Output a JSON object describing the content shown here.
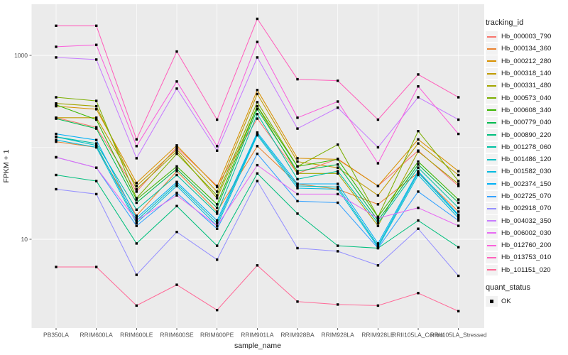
{
  "figure": {
    "panel_bg": "#EBEBEB",
    "grid_color": "#FFFFFF",
    "point_color": "#000000",
    "tick_color": "#333333",
    "tick_label_color": "#4D4D4D",
    "axis_title_color": "#1A1A1A",
    "legend_key_bg": "#F2F2F2"
  },
  "axes": {
    "x_title": "sample_name",
    "y_title": "FPKM + 1",
    "y_ticks": [
      {
        "label": "1000",
        "value": 1000
      },
      {
        "label": "10",
        "value": 10
      }
    ],
    "y_minor_ticks": [
      100
    ]
  },
  "legend": {
    "tracking_title": "tracking_id",
    "quant_title": "quant_status",
    "quant_ok_label": "OK"
  },
  "chart_data": {
    "type": "line",
    "title": "",
    "xlabel": "sample_name",
    "ylabel": "FPKM + 1",
    "y_scale": "log10",
    "ylim": [
      1.1,
      3600
    ],
    "grid": true,
    "legend_position": "right",
    "marker": "black-square",
    "categories": [
      "PB350LA",
      "RRIM600LA",
      "RRIM600LE",
      "RRIM600SE",
      "RRIM600PE",
      "RRIM901LA",
      "RRIM928BA",
      "RRIM928LA",
      "RRIM928LE",
      "RRII105LA_Control",
      "RRII105LA_Stressed"
    ],
    "series": [
      {
        "name": "Hb_000003_790",
        "color": "#F8766D",
        "values": [
          210,
          165,
          33,
          100,
          38,
          205,
          52,
          75,
          38,
          92,
          38
        ]
      },
      {
        "name": "Hb_000134_360",
        "color": "#EA8331",
        "values": [
          115,
          100,
          18,
          55,
          20,
          103,
          40,
          35,
          24,
          53,
          20
        ]
      },
      {
        "name": "Hb_000212_280",
        "color": "#D89000",
        "values": [
          280,
          260,
          41,
          105,
          37,
          420,
          76,
          74,
          38,
          122,
          55
        ]
      },
      {
        "name": "Hb_000318_140",
        "color": "#C09B00",
        "values": [
          210,
          210,
          38,
          95,
          33,
          380,
          70,
          60,
          30,
          110,
          50
        ]
      },
      {
        "name": "Hb_000331_480",
        "color": "#A3A500",
        "values": [
          300,
          280,
          35,
          90,
          28,
          280,
          52,
          52,
          14,
          90,
          40
        ]
      },
      {
        "name": "Hb_000573_040",
        "color": "#7CAE00",
        "values": [
          350,
          320,
          28,
          85,
          30,
          310,
          62,
          107,
          17.5,
          150,
          43
        ]
      },
      {
        "name": "Hb_000608_340",
        "color": "#39B600",
        "values": [
          290,
          200,
          27,
          62,
          24,
          280,
          62,
          74,
          17.5,
          70,
          27
        ]
      },
      {
        "name": "Hb_000779_040",
        "color": "#00BB4E",
        "values": [
          205,
          160,
          25,
          58,
          22,
          260,
          55,
          65,
          16,
          65,
          25
        ]
      },
      {
        "name": "Hb_000890_220",
        "color": "#00BF7D",
        "values": [
          50,
          43,
          9,
          23,
          8.5,
          52,
          19,
          8.5,
          8,
          16,
          8.2
        ]
      },
      {
        "name": "Hb_001278_060",
        "color": "#00C1A3",
        "values": [
          130,
          110,
          21,
          50,
          19,
          230,
          45,
          55,
          15,
          60,
          22
        ]
      },
      {
        "name": "Hb_001486_120",
        "color": "#00BFC4",
        "values": [
          130,
          105,
          16,
          40,
          15,
          140,
          38,
          37,
          8.5,
          53,
          18
        ]
      },
      {
        "name": "Hb_001582_030",
        "color": "#00BAE0",
        "values": [
          120,
          100,
          15,
          38,
          14,
          135,
          36,
          35,
          8.2,
          50,
          17
        ]
      },
      {
        "name": "Hb_002374_150",
        "color": "#00B0F6",
        "values": [
          140,
          120,
          17,
          42,
          16,
          145,
          40,
          40,
          9,
          55,
          18.5
        ]
      },
      {
        "name": "Hb_002725_070",
        "color": "#35A2FF",
        "values": [
          78,
          60,
          14,
          32,
          13,
          85,
          26,
          25,
          8,
          33,
          16
        ]
      },
      {
        "name": "Hb_002918_070",
        "color": "#9590FF",
        "values": [
          35,
          31,
          4.1,
          12,
          6,
          43,
          8,
          7.4,
          5.2,
          13,
          4
        ]
      },
      {
        "name": "Hb_004032_350",
        "color": "#C77CFF",
        "values": [
          950,
          900,
          76,
          435,
          92,
          950,
          160,
          270,
          100,
          350,
          200
        ]
      },
      {
        "name": "Hb_006002_030",
        "color": "#E76BF3",
        "values": [
          78,
          60,
          16,
          30,
          14,
          64,
          31,
          31,
          17,
          22,
          14
        ]
      },
      {
        "name": "Hb_012760_200",
        "color": "#FA62DB",
        "values": [
          1240,
          1300,
          103,
          520,
          103,
          1400,
          210,
          315,
          67,
          460,
          140
        ]
      },
      {
        "name": "Hb_013753_010",
        "color": "#FF62BC",
        "values": [
          2100,
          2100,
          122,
          1100,
          200,
          2500,
          550,
          530,
          200,
          620,
          350
        ]
      },
      {
        "name": "Hb_101151_020",
        "color": "#FF6A98",
        "values": [
          5,
          5,
          1.9,
          3.2,
          1.7,
          5.2,
          2.1,
          1.95,
          1.9,
          2.6,
          1.65
        ]
      }
    ]
  }
}
